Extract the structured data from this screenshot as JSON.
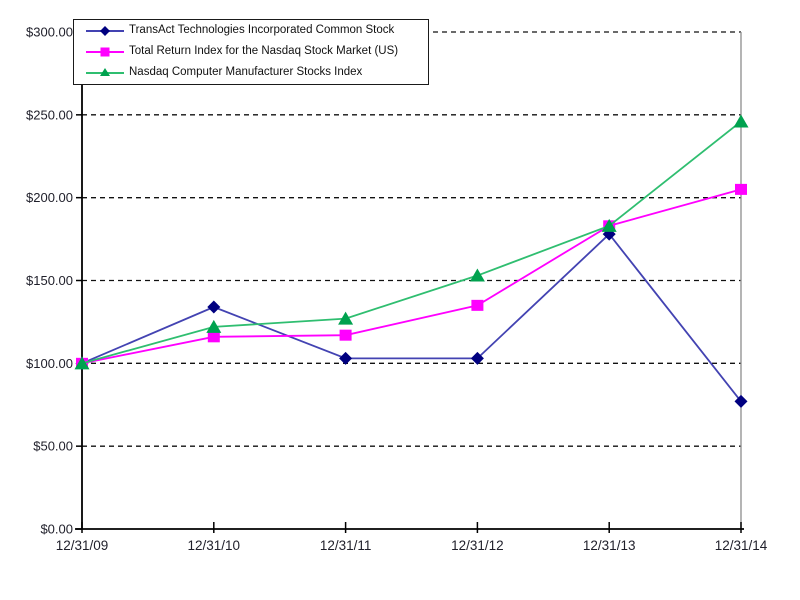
{
  "chart_data": {
    "type": "line",
    "title": "",
    "xlabel": "",
    "ylabel": "",
    "categories": [
      "12/31/09",
      "12/31/10",
      "12/31/11",
      "12/31/12",
      "12/31/13",
      "12/31/14"
    ],
    "series": [
      {
        "name": "TransAct Technologies Incorporated Common Stock",
        "marker": "diamond",
        "line_color": "#4343b2",
        "marker_color": "#000080",
        "values": [
          100,
          134,
          103,
          103,
          178,
          77
        ]
      },
      {
        "name": "Total Return Index for the Nasdaq Stock Market (US)",
        "marker": "square",
        "line_color": "#ff00ff",
        "marker_color": "#ff00ff",
        "values": [
          100,
          116,
          117,
          135,
          183,
          205
        ]
      },
      {
        "name": "Nasdaq Computer Manufacturer Stocks Index",
        "marker": "triangle",
        "line_color": "#2fbe70",
        "marker_color": "#00a24f",
        "values": [
          100,
          122,
          127,
          153,
          183,
          246
        ]
      }
    ],
    "ylim": [
      0,
      300
    ],
    "ytick_interval": 50,
    "ytick_labels": [
      "$0.00",
      "$50.00",
      "$100.00",
      "$150.00",
      "$200.00",
      "$250.00",
      "$300.00"
    ],
    "xtick_labels": [
      "12/31/09",
      "12/31/10",
      "12/31/11",
      "12/31/12",
      "12/31/13",
      "12/31/14"
    ],
    "grid": "horizontal-dashed",
    "legend_position": "top-left",
    "axis_color": "#000000",
    "gridline_color": "#111111",
    "plot_border_right_color": "#8d8d8d",
    "axis_text_color": "#1f1f2a",
    "background_color": "#ffffff"
  }
}
